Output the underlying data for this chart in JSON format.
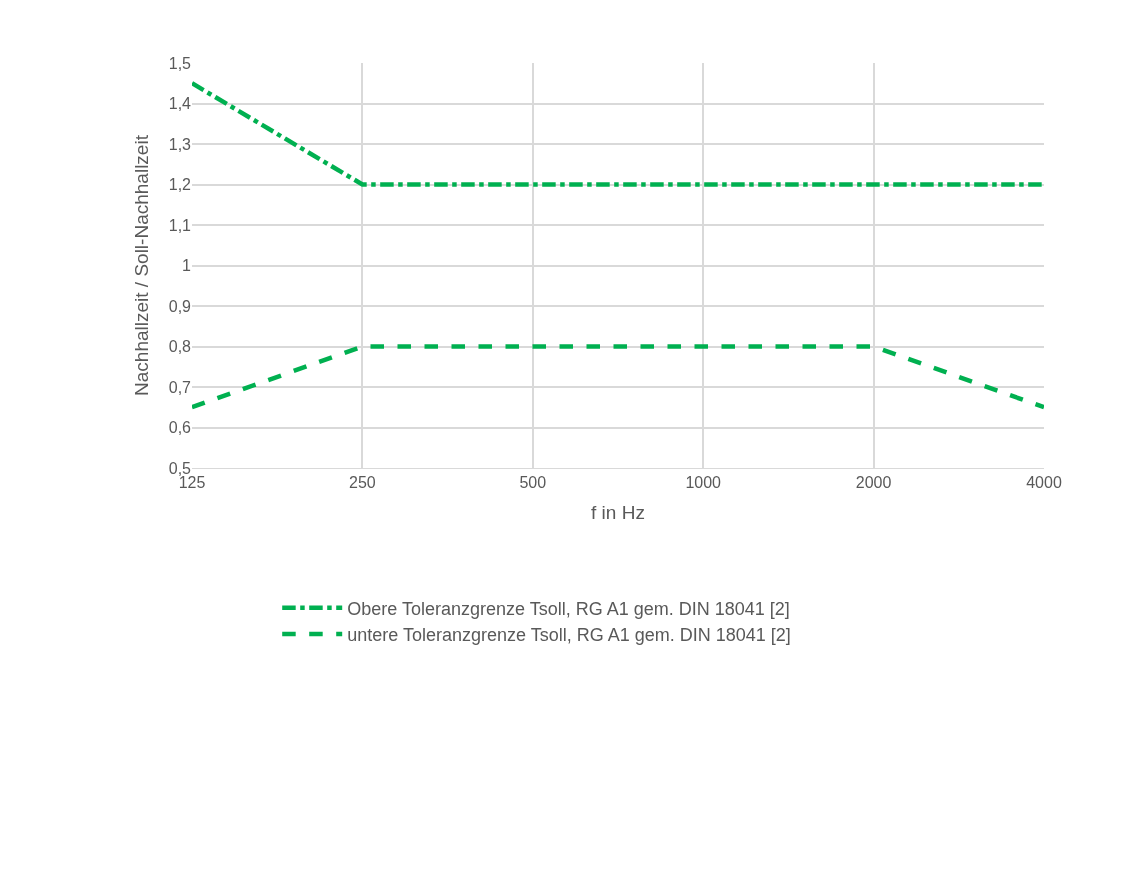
{
  "chart_data": {
    "type": "line",
    "xlabel": "f in Hz",
    "ylabel": "Nachhallzeit / Soll-Nachhallzeit",
    "categories": [
      "125",
      "250",
      "500",
      "1000",
      "2000",
      "4000"
    ],
    "series": [
      {
        "name": "Obere Toleranzgrenze Tsoll, RG A1 gem. DIN 18041 [2]",
        "color": "#00b050",
        "line_style": "dashdot",
        "values": [
          1.45,
          1.2,
          1.2,
          1.2,
          1.2,
          1.2
        ]
      },
      {
        "name": "untere Toleranzgrenze Tsoll, RG A1 gem. DIN 18041 [2]",
        "color": "#00b050",
        "line_style": "dashed",
        "values": [
          0.65,
          0.8,
          0.8,
          0.8,
          0.8,
          0.65
        ]
      }
    ],
    "ylim": [
      0.5,
      1.5
    ],
    "yticks": [
      {
        "value": 0.5,
        "label": "0,5"
      },
      {
        "value": 0.6,
        "label": "0,6"
      },
      {
        "value": 0.7,
        "label": "0,7"
      },
      {
        "value": 0.8,
        "label": "0,8"
      },
      {
        "value": 0.9,
        "label": "0,9"
      },
      1,
      {
        "value": 1.1,
        "label": "1,1"
      },
      {
        "value": 1.2,
        "label": "1,2"
      },
      {
        "value": 1.3,
        "label": "1,3"
      },
      {
        "value": 1.4,
        "label": "1,4"
      },
      {
        "value": 1.5,
        "label": "1,5"
      }
    ],
    "grid": true,
    "legend": "bottom",
    "marker": "none"
  }
}
